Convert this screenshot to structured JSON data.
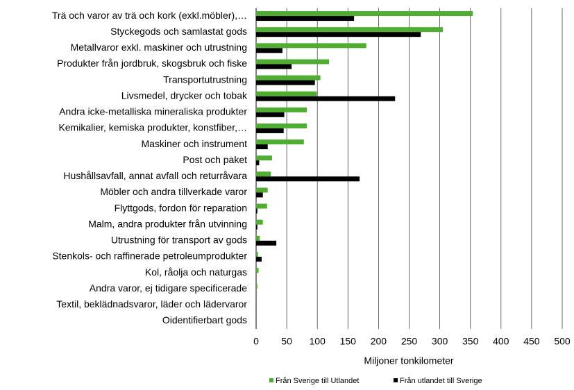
{
  "chart_data": {
    "type": "bar",
    "orientation": "horizontal",
    "x_axis_label": "Miljoner tonkilometer",
    "categories": [
      "Trä och varor av trä och kork (exkl.möbler),…",
      "Styckegods och samlastat gods",
      "Metallvaror exkl. maskiner och utrustning",
      "Produkter från jordbruk, skogsbruk och fiske",
      "Transportutrustning",
      "Livsmedel, drycker och tobak",
      "Andra icke-metalliska mineraliska produkter",
      "Kemikalier, kemiska produkter, konstfiber,…",
      "Maskiner och instrument",
      "Post och paket",
      "Hushållsavfall, annat avfall och returråvara",
      "Möbler och andra tillverkade varor",
      "Flyttgods, fordon för reparation",
      "Malm, andra produkter från utvinning",
      "Utrustning för transport av gods",
      "Stenkols- och raffinerade petroleumprodukter",
      "Kol, råolja och naturgas",
      "Andra varor, ej tidigare specificerade",
      "Textil, beklädnadsvaror, läder och lädervaror",
      "Oidentifierbart gods"
    ],
    "series": [
      {
        "name": "Från Sverige till Utlandet",
        "color": "#4fae32",
        "values": [
          354,
          305,
          180,
          119,
          105,
          99,
          83,
          83,
          78,
          26,
          24,
          19,
          18,
          11,
          6,
          3,
          4,
          2,
          0,
          0
        ]
      },
      {
        "name": "Från utlandet till Sverige",
        "color": "#000000",
        "values": [
          160,
          269,
          43,
          58,
          96,
          227,
          46,
          45,
          19,
          5,
          169,
          11,
          2,
          2,
          33,
          9,
          0.5,
          0,
          0,
          0
        ]
      }
    ],
    "xlim": [
      0,
      500
    ],
    "xticks": [
      0,
      50,
      100,
      150,
      200,
      250,
      300,
      350,
      400,
      450,
      500
    ],
    "grid": true,
    "legend": "bottom"
  }
}
